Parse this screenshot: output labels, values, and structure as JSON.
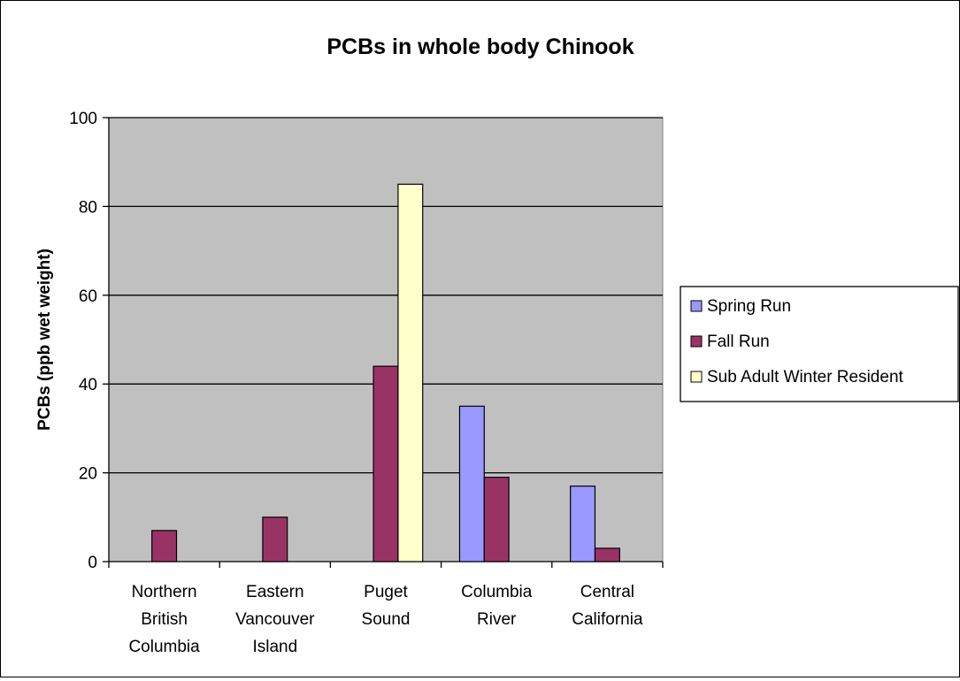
{
  "chart_data": {
    "type": "bar",
    "title": "PCBs in whole body Chinook",
    "xlabel": "",
    "ylabel": "PCBs (ppb wet weight)",
    "ylim": [
      0,
      100
    ],
    "yticks": [
      0,
      20,
      40,
      60,
      80,
      100
    ],
    "grid": true,
    "legend_position": "right",
    "categories": [
      [
        "Northern",
        "British",
        "Columbia"
      ],
      [
        "Eastern",
        "Vancouver",
        "Island"
      ],
      [
        "Puget",
        "Sound"
      ],
      [
        "Columbia",
        "River"
      ],
      [
        "Central",
        "California"
      ]
    ],
    "series": [
      {
        "name": "Spring Run",
        "color": "#9999ff",
        "values": [
          null,
          null,
          null,
          35,
          17
        ]
      },
      {
        "name": "Fall Run",
        "color": "#993366",
        "values": [
          7,
          10,
          44,
          19,
          3
        ]
      },
      {
        "name": "Sub Adult Winter Resident",
        "color": "#ffffcc",
        "values": [
          null,
          null,
          85,
          null,
          null
        ]
      }
    ],
    "plot_background": "#c0c0c0"
  }
}
